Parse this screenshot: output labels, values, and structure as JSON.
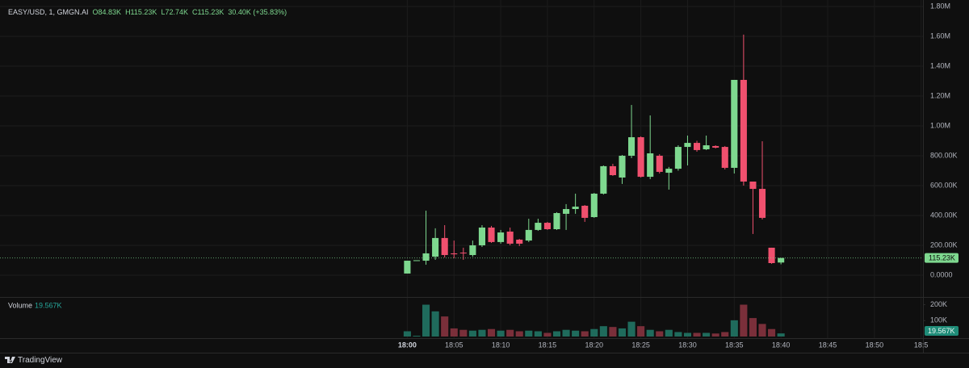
{
  "chart_data": {
    "type": "candlestick",
    "symbol": "EASY/USD, 1, GMGN.AI",
    "ohlc_labels": [
      "O84.83K",
      "H115.23K",
      "L72.74K",
      "C115.23K",
      "30.40K (+35.83%)"
    ],
    "volume_title": "Volume",
    "volume_value_label": "19.567K",
    "last_price_label": "115.23K",
    "up_color": "#7ed88f",
    "down_color": "#f0506e",
    "volume_up_color": "#1f6b5c",
    "volume_down_color": "#7a2f3a",
    "x": [
      0,
      1,
      2,
      3,
      4,
      5,
      6,
      7,
      8,
      9,
      10,
      11,
      12,
      13,
      14,
      15,
      16,
      17,
      18,
      19,
      20,
      21,
      22,
      23,
      24,
      25,
      26,
      27,
      28,
      29,
      30,
      31,
      32,
      33,
      34,
      35,
      36,
      37,
      38,
      39,
      40
    ],
    "open": [
      11,
      97,
      97,
      124,
      249,
      146,
      151,
      135,
      200,
      319,
      222,
      292,
      238,
      232,
      303,
      351,
      308,
      411,
      443,
      465,
      389,
      546,
      730,
      654,
      800,
      924,
      659,
      800,
      686,
      713,
      859,
      886,
      843,
      865,
      859,
      719,
      1308,
      627,
      578,
      184,
      84.83
    ],
    "high": [
      97,
      100,
      432,
      314,
      335,
      232,
      184,
      232,
      335,
      330,
      303,
      319,
      243,
      378,
      378,
      357,
      422,
      476,
      546,
      470,
      551,
      735,
      746,
      805,
      1140,
      930,
      1070,
      810,
      725,
      870,
      935,
      900,
      935,
      870,
      865,
      1308,
      1611,
      627,
      897,
      184,
      115.23
    ],
    "low": [
      11,
      95,
      70,
      103,
      119,
      113,
      103,
      124,
      189,
      216,
      211,
      200,
      195,
      222,
      297,
      303,
      303,
      303,
      411,
      357,
      384,
      540,
      665,
      611,
      784,
      654,
      643,
      681,
      573,
      700,
      735,
      827,
      838,
      849,
      708,
      681,
      600,
      276,
      373,
      76,
      72.74
    ],
    "close": [
      97,
      100,
      146,
      249,
      135,
      140,
      146,
      200,
      319,
      222,
      286,
      211,
      211,
      303,
      351,
      308,
      416,
      443,
      459,
      384,
      546,
      730,
      670,
      800,
      924,
      659,
      816,
      692,
      713,
      859,
      886,
      838,
      870,
      854,
      719,
      1308,
      627,
      578,
      384,
      81,
      115.23
    ],
    "volume": [
      33,
      5,
      200,
      158,
      126,
      51,
      42,
      37,
      42,
      47,
      37,
      42,
      33,
      37,
      33,
      23,
      33,
      42,
      37,
      33,
      47,
      65,
      60,
      51,
      93,
      65,
      42,
      33,
      42,
      28,
      23,
      23,
      23,
      19,
      28,
      102,
      200,
      116,
      79,
      47,
      19.567
    ],
    "xlim": [
      -43.6,
      55.2
    ],
    "xticks": [
      {
        "value": 0,
        "label": "18:00"
      },
      {
        "value": 5,
        "label": "18:05"
      },
      {
        "value": 10,
        "label": "18:10"
      },
      {
        "value": 15,
        "label": "18:15"
      },
      {
        "value": 20,
        "label": "18:20"
      },
      {
        "value": 25,
        "label": "18:25"
      },
      {
        "value": 30,
        "label": "18:30"
      },
      {
        "value": 35,
        "label": "18:35"
      },
      {
        "value": 40,
        "label": "18:40"
      },
      {
        "value": 45,
        "label": "18:45"
      },
      {
        "value": 50,
        "label": "18:50"
      },
      {
        "value": 55,
        "label": "18:5"
      }
    ],
    "ylim": [
      -146,
      1843
    ],
    "yticks": [
      {
        "value": 1800,
        "label": "1.80M"
      },
      {
        "value": 1600,
        "label": "1.60M"
      },
      {
        "value": 1400,
        "label": "1.40M"
      },
      {
        "value": 1200,
        "label": "1.20M"
      },
      {
        "value": 1000,
        "label": "1.00M"
      },
      {
        "value": 800,
        "label": "800.00K"
      },
      {
        "value": 600,
        "label": "600.00K"
      },
      {
        "value": 400,
        "label": "400.00K"
      },
      {
        "value": 200,
        "label": "200.00K"
      },
      {
        "value": 0,
        "label": "0.0000"
      }
    ],
    "volume_ylim": [
      0,
      228
    ],
    "volume_yticks": [
      {
        "value": 200,
        "label": "200K"
      },
      {
        "value": 100,
        "label": "100K"
      }
    ],
    "grid": true
  },
  "footer": {
    "brand": "TradingView"
  }
}
